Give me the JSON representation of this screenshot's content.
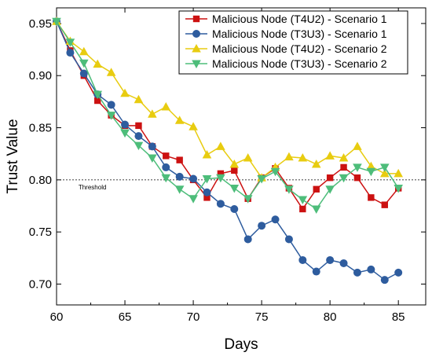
{
  "chart_data": {
    "type": "line",
    "xlabel": "Days",
    "ylabel": "Trust Value",
    "xlim": [
      60,
      87
    ],
    "ylim": [
      0.68,
      0.965
    ],
    "xticks": [
      60,
      65,
      70,
      75,
      80,
      85
    ],
    "yticks": [
      0.7,
      0.75,
      0.8,
      0.85,
      0.9,
      0.95
    ],
    "xtick_labels": [
      "60",
      "65",
      "70",
      "75",
      "80",
      "85"
    ],
    "ytick_labels": [
      "0.70",
      "0.75",
      "0.80",
      "0.85",
      "0.90",
      "0.95"
    ],
    "threshold": {
      "value": 0.8,
      "label": "Threshold"
    },
    "legend_position": "top-right",
    "grid": false,
    "x": [
      60,
      61,
      62,
      63,
      64,
      65,
      66,
      67,
      68,
      69,
      70,
      71,
      72,
      73,
      74,
      75,
      76,
      77,
      78,
      79,
      80,
      81,
      82,
      83,
      84,
      85
    ],
    "series": [
      {
        "name": "Malicious Node (T4U2) - Scenario 1",
        "color": "#cc1111",
        "marker": "square",
        "values": [
          0.952,
          0.924,
          0.9,
          0.876,
          0.862,
          0.852,
          0.852,
          0.832,
          0.823,
          0.819,
          0.8,
          0.783,
          0.806,
          0.809,
          0.782,
          0.802,
          0.811,
          0.792,
          0.772,
          0.791,
          0.802,
          0.812,
          0.802,
          0.783,
          0.776,
          0.792
        ]
      },
      {
        "name": "Malicious Node (T3U3) - Scenario 1",
        "color": "#2e5c9e",
        "marker": "circle",
        "values": [
          0.952,
          0.922,
          0.902,
          0.882,
          0.872,
          0.853,
          0.842,
          0.832,
          0.812,
          0.803,
          0.801,
          0.788,
          0.777,
          0.772,
          0.743,
          0.756,
          0.762,
          0.743,
          0.723,
          0.712,
          0.723,
          0.72,
          0.711,
          0.714,
          0.704,
          0.711
        ]
      },
      {
        "name": "Malicious Node (T4U2) - Scenario 2",
        "color": "#e8cc10",
        "marker": "triangle-up",
        "values": [
          0.952,
          0.933,
          0.923,
          0.911,
          0.903,
          0.883,
          0.877,
          0.863,
          0.87,
          0.857,
          0.851,
          0.824,
          0.832,
          0.815,
          0.821,
          0.802,
          0.812,
          0.822,
          0.821,
          0.815,
          0.823,
          0.821,
          0.832,
          0.813,
          0.806,
          0.806
        ]
      },
      {
        "name": "Malicious Node (T3U3) - Scenario 2",
        "color": "#4dbd7a",
        "marker": "triangle-down",
        "values": [
          0.952,
          0.932,
          0.912,
          0.882,
          0.862,
          0.845,
          0.833,
          0.821,
          0.802,
          0.791,
          0.782,
          0.801,
          0.802,
          0.792,
          0.782,
          0.801,
          0.808,
          0.791,
          0.781,
          0.772,
          0.791,
          0.802,
          0.812,
          0.808,
          0.812,
          0.792
        ]
      }
    ]
  }
}
